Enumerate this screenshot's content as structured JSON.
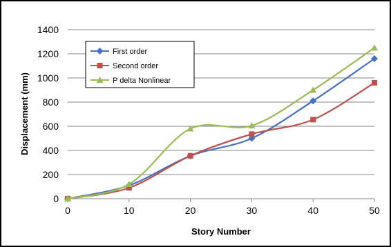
{
  "chart_data": {
    "type": "line",
    "title": "",
    "xlabel": "Story Number",
    "ylabel": "Displacement (mm)",
    "x": [
      0,
      10,
      20,
      30,
      40,
      50
    ],
    "xlim": [
      0,
      50
    ],
    "ylim": [
      0,
      1400
    ],
    "xticks": [
      0,
      10,
      20,
      30,
      40,
      50
    ],
    "yticks": [
      0,
      200,
      400,
      600,
      800,
      1000,
      1200,
      1400
    ],
    "grid": "horizontal",
    "legend_position": "top-left",
    "smooth": true,
    "series": [
      {
        "name": "First order",
        "values": [
          0,
          110,
          355,
          500,
          810,
          1160
        ],
        "color": "#4572C4",
        "marker": "diamond"
      },
      {
        "name": "Second order",
        "values": [
          0,
          90,
          355,
          535,
          655,
          960
        ],
        "color": "#C0504D",
        "marker": "square"
      },
      {
        "name": "P delta Nonlinear",
        "values": [
          0,
          120,
          580,
          605,
          900,
          1250
        ],
        "color": "#9BBB59",
        "marker": "triangle"
      }
    ]
  }
}
